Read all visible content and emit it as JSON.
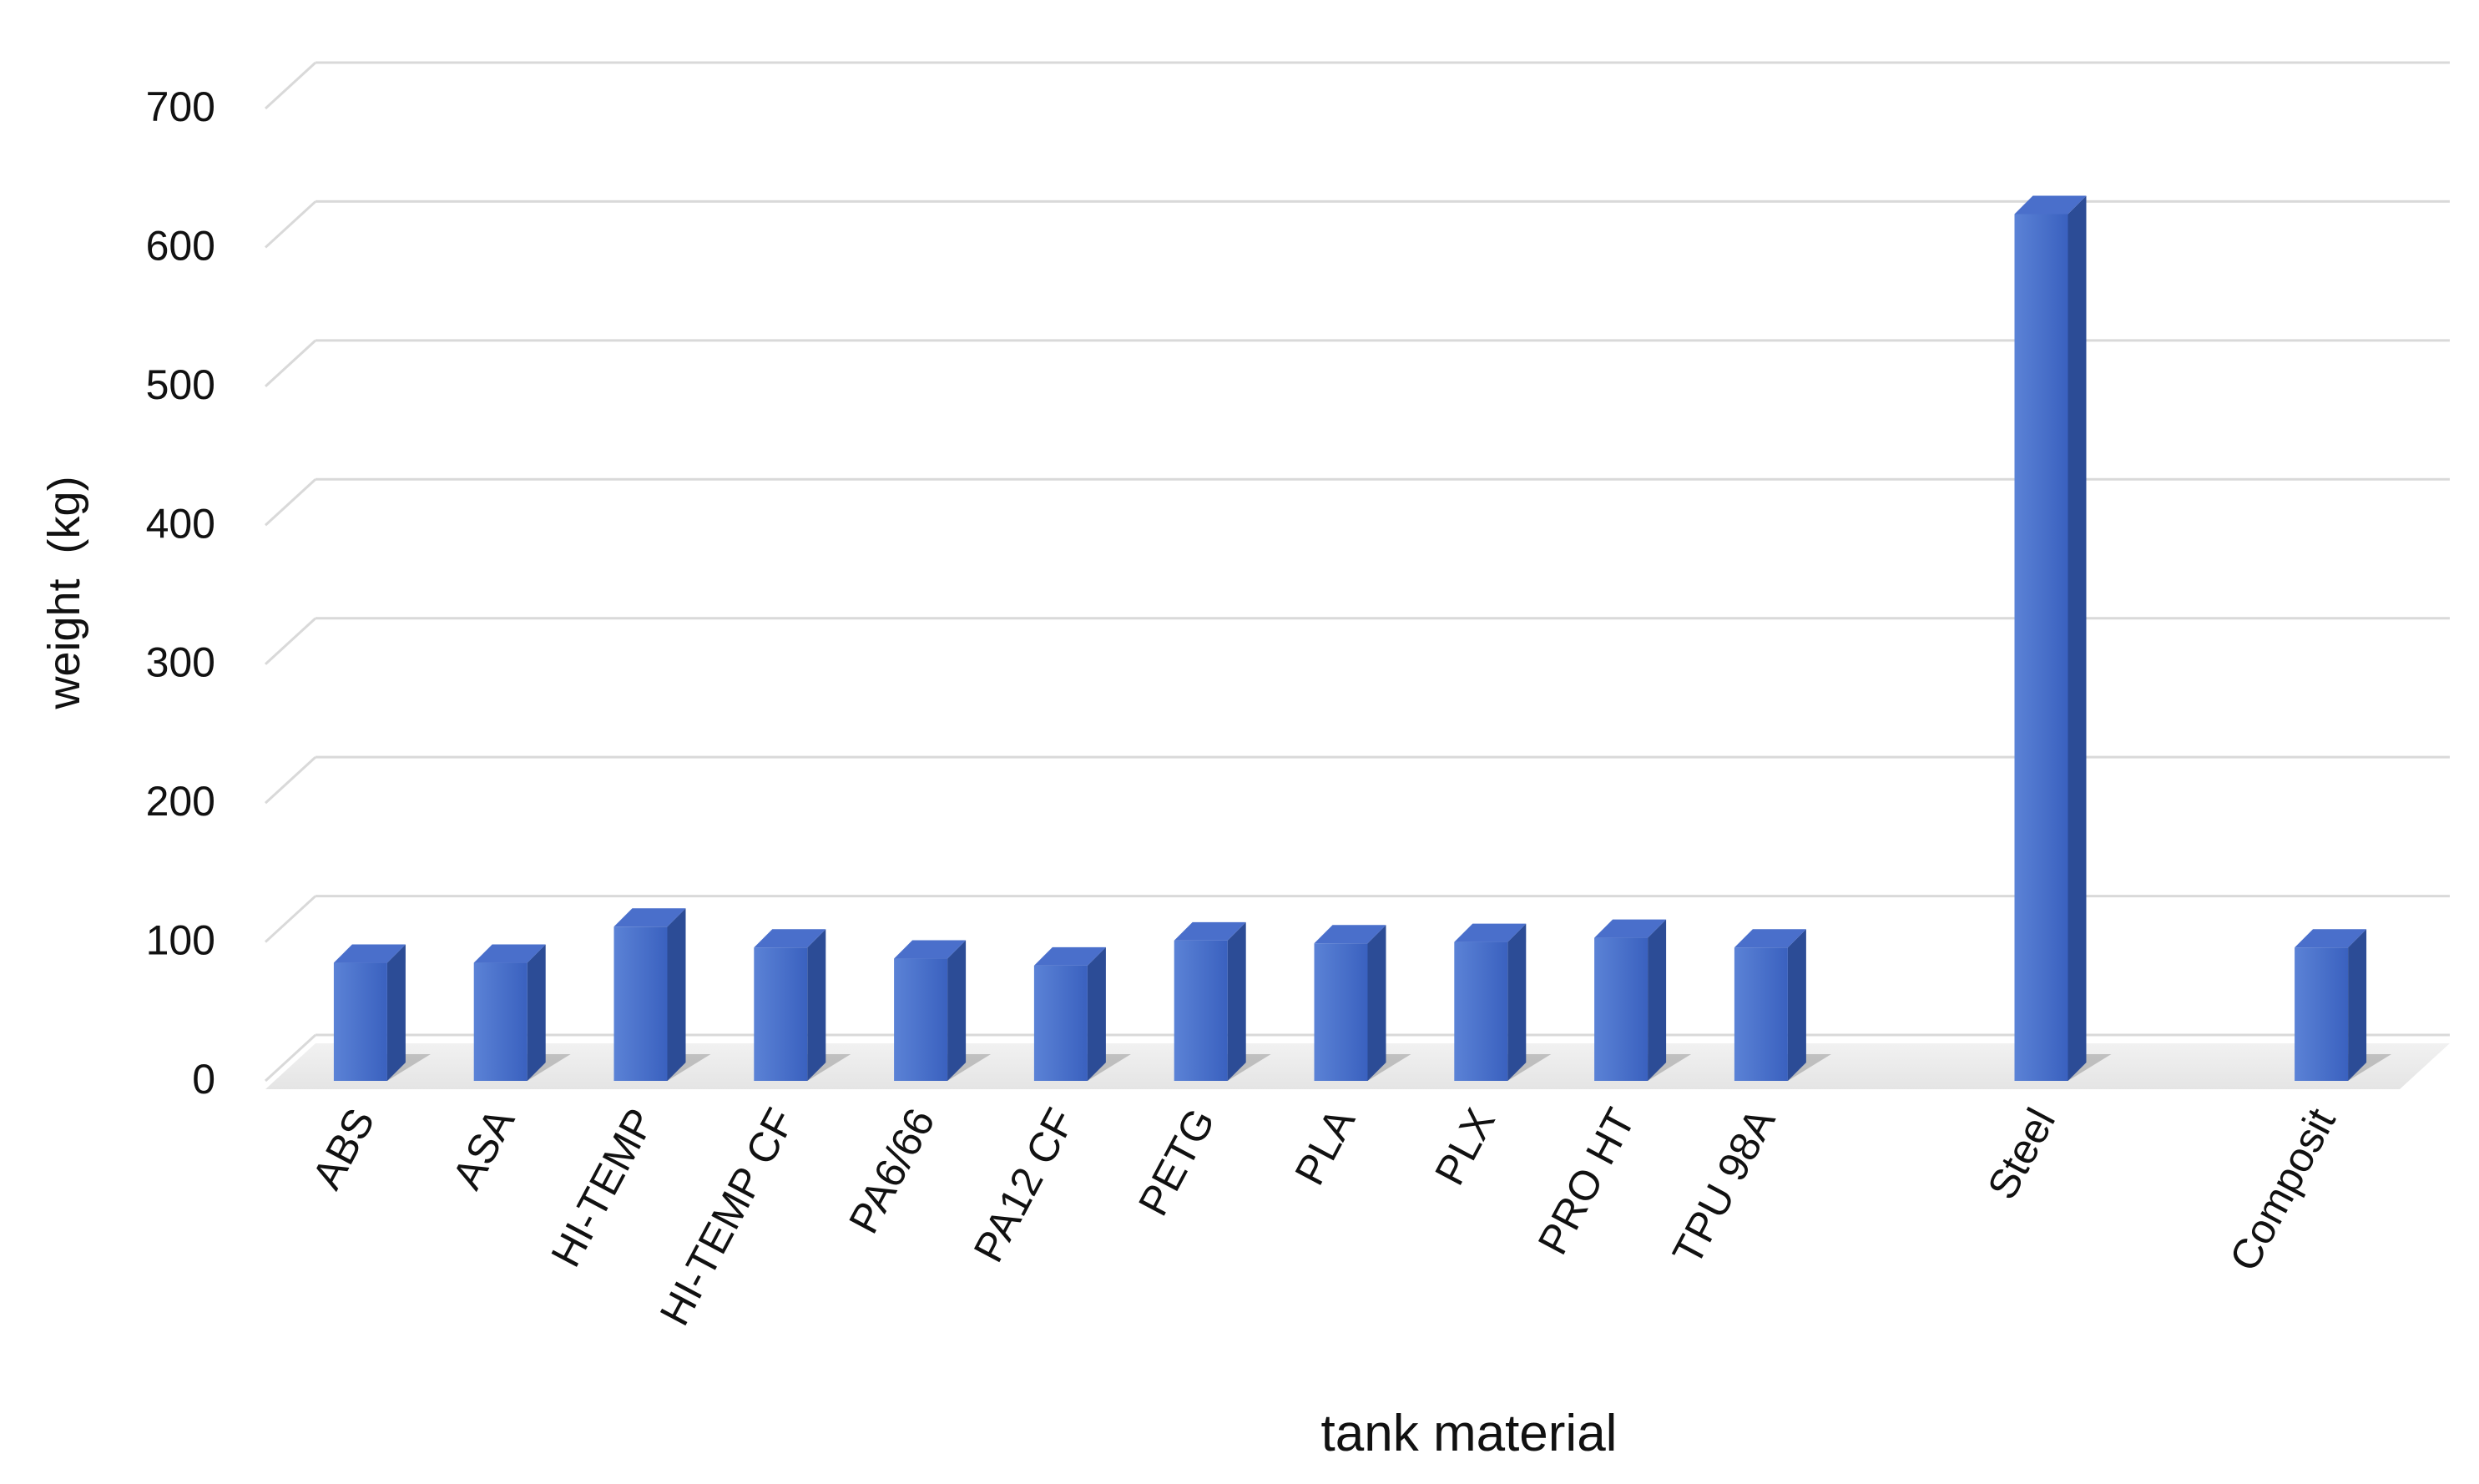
{
  "chart_data": {
    "type": "bar",
    "title": "",
    "xlabel": "tank material",
    "ylabel": "weight  (kg)",
    "ylim": [
      0,
      700
    ],
    "yticks": [
      0,
      100,
      200,
      300,
      400,
      500,
      600,
      700
    ],
    "grid": true,
    "legend": "none",
    "style": "3d-column",
    "categories": [
      "ABS",
      "ASA",
      "HI-TEMP",
      "HI-TEMP CF",
      "PA6/66",
      "PA12 CF",
      "PETG",
      "PLA",
      "PLX",
      "PRO HT",
      "TPU 98A",
      "",
      "Steel",
      "",
      "Composit"
    ],
    "values": [
      85,
      85,
      111,
      96,
      88,
      83,
      101,
      99,
      100,
      103,
      96,
      null,
      624,
      null,
      96
    ]
  },
  "colors": {
    "bar_front": "#3f66c4",
    "bar_front_light": "#5b82d6",
    "bar_side": "#2c4c96",
    "bar_top": "#4a6fcb",
    "gridline": "#d9d9d9",
    "text": "#111111"
  }
}
